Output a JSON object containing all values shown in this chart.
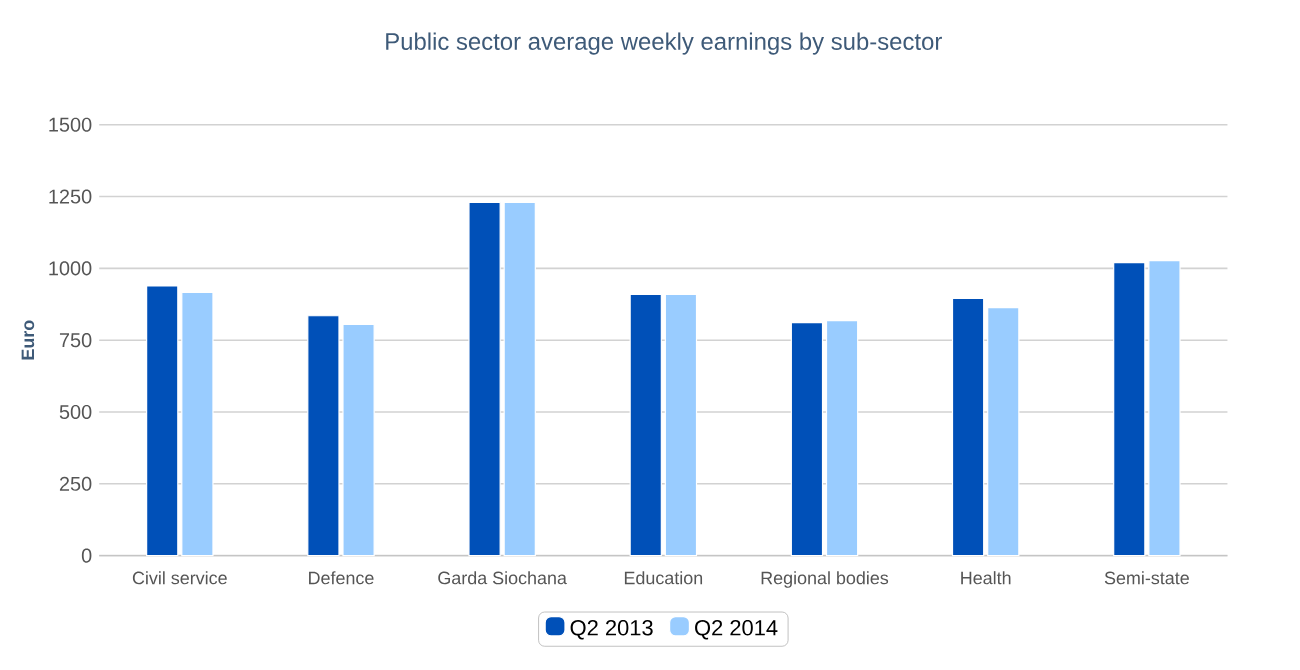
{
  "chart_data": {
    "type": "bar",
    "title": "Public sector average weekly earnings by sub-sector",
    "ylabel": "Euro",
    "categories": [
      "Civil service",
      "Defence",
      "Garda Siochana",
      "Education",
      "Regional bodies",
      "Health",
      "Semi-state"
    ],
    "series": [
      {
        "name": "Q2 2013",
        "color": "#0050b8",
        "values": [
          939,
          835,
          1230,
          909,
          811,
          895,
          1020
        ]
      },
      {
        "name": "Q2 2014",
        "color": "#99ccff",
        "values": [
          916,
          805,
          1230,
          909,
          818,
          863,
          1027
        ]
      }
    ],
    "ylim": [
      0,
      1500
    ],
    "yticks": [
      0,
      250,
      500,
      750,
      1000,
      1250,
      1500
    ],
    "grid": "y",
    "legend": "bottom"
  }
}
